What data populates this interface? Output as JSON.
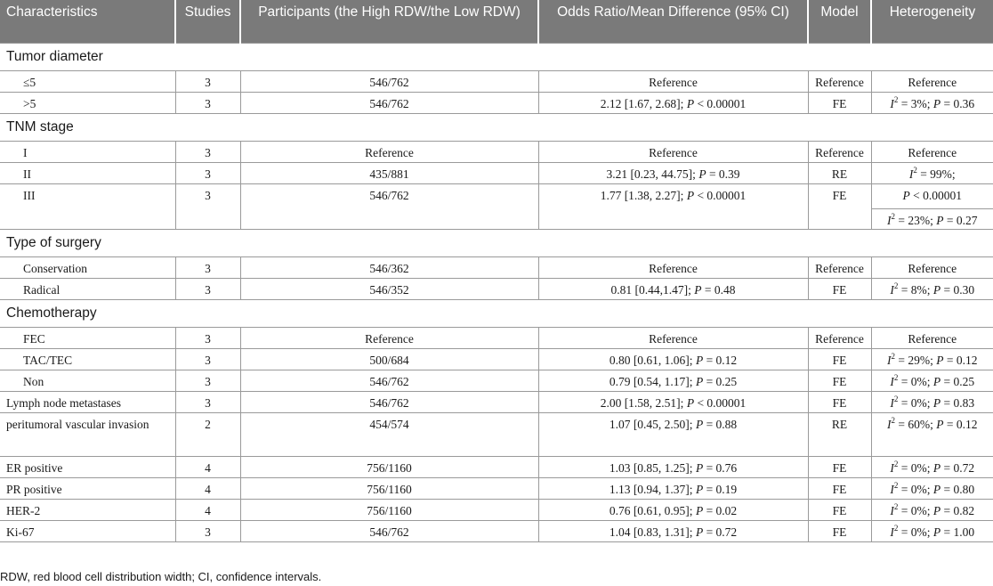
{
  "headers": {
    "characteristics": "Characteristics",
    "studies": "Studies",
    "participants": "Participants (the High RDW/the Low RDW)",
    "odds_ratio": "Odds Ratio/Mean Difference (95% CI)",
    "model": "Model",
    "heterogeneity": "Heterogeneity"
  },
  "sections": {
    "tumor_diameter": "Tumor diameter",
    "tnm_stage": "TNM stage",
    "type_of_surgery": "Type of surgery",
    "chemotherapy": "Chemotherapy"
  },
  "rows": {
    "td_le5": {
      "label": "≤5",
      "studies": "3",
      "participants": "546/762",
      "or": "Reference",
      "model": "Reference",
      "het": "Reference"
    },
    "td_gt5": {
      "label": ">5",
      "studies": "3",
      "participants": "546/762",
      "or_ci": "2.12 [1.67, 2.68]; ",
      "or_p": " < 0.00001",
      "model": "FE",
      "het_i2": " = 3%; ",
      "het_p": " = 0.36"
    },
    "tnm_i": {
      "label": "I",
      "studies": "3",
      "participants": "Reference",
      "or": "Reference",
      "model": "Reference",
      "het": "Reference"
    },
    "tnm_ii": {
      "label": "II",
      "studies": "3",
      "participants": "435/881",
      "or_ci": "3.21 [0.23, 44.75]; ",
      "or_p": " = 0.39",
      "model": "RE",
      "het_i2": " = 99%;"
    },
    "tnm_iii": {
      "label": "III",
      "studies": "3",
      "participants": "546/762",
      "or_ci": "1.77 [1.38, 2.27]; ",
      "or_p": " < 0.00001",
      "model": "FE",
      "het_top_p": " < 0.00001",
      "het_i2": " = 23%; ",
      "het_p": " = 0.27"
    },
    "surg_cons": {
      "label": "Conservation",
      "studies": "3",
      "participants": "546/362",
      "or": "Reference",
      "model": "Reference",
      "het": "Reference"
    },
    "surg_rad": {
      "label": "Radical",
      "studies": "3",
      "participants": "546/352",
      "or_ci": "0.81 [0.44,1.47]; ",
      "or_p": " = 0.48",
      "model": "FE",
      "het_i2": " = 8%; ",
      "het_p": " = 0.30"
    },
    "chemo_fec": {
      "label": "FEC",
      "studies": "3",
      "participants": "Reference",
      "or": "Reference",
      "model": "Reference",
      "het": "Reference"
    },
    "chemo_tac": {
      "label": "TAC/TEC",
      "studies": "3",
      "participants": "500/684",
      "or_ci": "0.80 [0.61, 1.06]; ",
      "or_p": " = 0.12",
      "model": "FE",
      "het_i2": " = 29%; ",
      "het_p": " = 0.12"
    },
    "chemo_non": {
      "label": "Non",
      "studies": "3",
      "participants": "546/762",
      "or_ci": "0.79 [0.54, 1.17]; ",
      "or_p": " = 0.25",
      "model": "FE",
      "het_i2": " = 0%; ",
      "het_p": " = 0.25"
    },
    "lymph": {
      "label": "Lymph node metastases",
      "studies": "3",
      "participants": "546/762",
      "or_ci": "2.00 [1.58, 2.51]; ",
      "or_p": " < 0.00001",
      "model": "FE",
      "het_i2": " = 0%; ",
      "het_p": " = 0.83"
    },
    "peri": {
      "label": "peritumoral vascular invasion",
      "studies": "2",
      "participants": "454/574",
      "or_ci": "1.07 [0.45, 2.50]; ",
      "or_p": " = 0.88",
      "model": "RE",
      "het_i2": " = 60%; ",
      "het_p": " = 0.12"
    },
    "er": {
      "label": "ER positive",
      "studies": "4",
      "participants": "756/1160",
      "or_ci": "1.03 [0.85, 1.25]; ",
      "or_p": " = 0.76",
      "model": "FE",
      "het_i2": " = 0%; ",
      "het_p": " = 0.72"
    },
    "pr": {
      "label": "PR positive",
      "studies": "4",
      "participants": "756/1160",
      "or_ci": "1.13 [0.94, 1.37]; ",
      "or_p": " = 0.19",
      "model": "FE",
      "het_i2": " = 0%; ",
      "het_p": " = 0.80"
    },
    "her2": {
      "label": "HER-2",
      "studies": "4",
      "participants": "756/1160",
      "or_ci": "0.76 [0.61, 0.95]; ",
      "or_p": " = 0.02",
      "model": "FE",
      "het_i2": " = 0%; ",
      "het_p": " = 0.82"
    },
    "ki67": {
      "label": "Ki-67",
      "studies": "3",
      "participants": "546/762",
      "or_ci": "1.04 [0.83, 1.31]; ",
      "or_p": " = 0.72",
      "model": "FE",
      "het_i2": " = 0%; ",
      "het_p": " = 1.00"
    }
  },
  "symbols": {
    "p": "P",
    "i": "I",
    "sq": "2"
  },
  "footnote": "RDW, red blood cell distribution width; CI, confidence intervals.",
  "colors": {
    "header_bg": "#7a7a7a",
    "header_text": "#ffffff",
    "rule": "#9a9a9a"
  }
}
